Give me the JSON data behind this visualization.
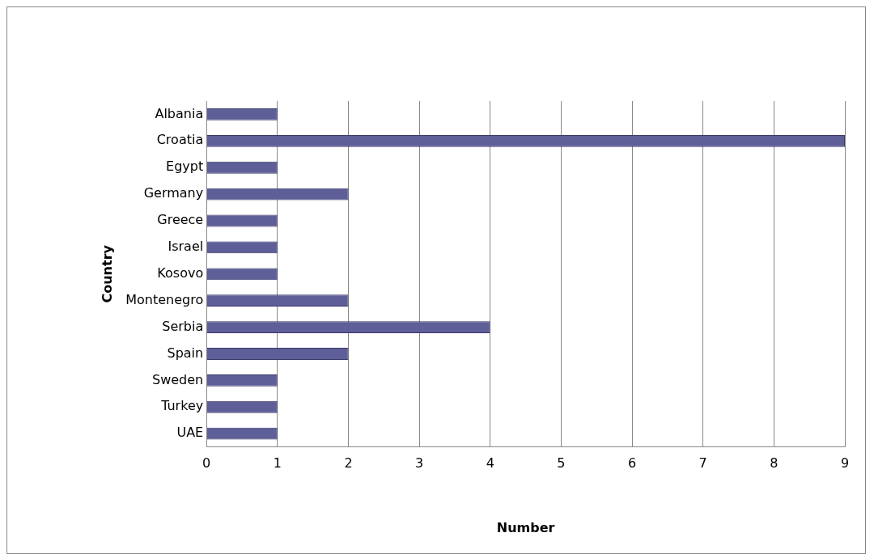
{
  "chart_data": {
    "type": "bar",
    "orientation": "horizontal",
    "xlabel": "Number",
    "ylabel": "Country",
    "categories": [
      "Albania",
      "Croatia",
      "Egypt",
      "Germany",
      "Greece",
      "Israel",
      "Kosovo",
      "Montenegro",
      "Serbia",
      "Spain",
      "Sweden",
      "Turkey",
      "UAE"
    ],
    "values": [
      1,
      9,
      1,
      2,
      1,
      1,
      1,
      2,
      4,
      2,
      1,
      1,
      1
    ],
    "color": "#5e5e98",
    "xlim": [
      0,
      9
    ],
    "xticks": [
      0,
      1,
      2,
      3,
      4,
      5,
      6,
      7,
      8,
      9
    ],
    "grid": "x",
    "legend": false
  }
}
